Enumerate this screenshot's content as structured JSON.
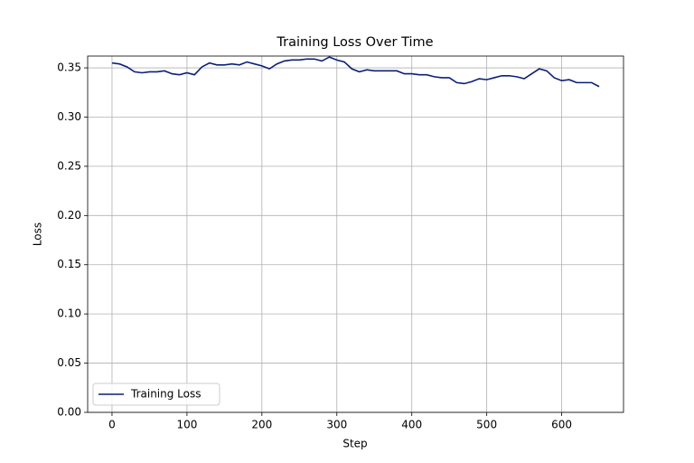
{
  "chart_data": {
    "type": "line",
    "title": "Training Loss Over Time",
    "xlabel": "Step",
    "ylabel": "Loss",
    "x": [
      0,
      10,
      20,
      30,
      40,
      50,
      60,
      70,
      80,
      90,
      100,
      110,
      120,
      130,
      140,
      150,
      160,
      170,
      180,
      190,
      200,
      210,
      220,
      230,
      240,
      250,
      260,
      270,
      280,
      290,
      300,
      310,
      320,
      330,
      340,
      350,
      360,
      370,
      380,
      390,
      400,
      410,
      420,
      430,
      440,
      450,
      460,
      470,
      480,
      490,
      500,
      510,
      520,
      530,
      540,
      550,
      560,
      570,
      580,
      590,
      600,
      610,
      620,
      630,
      640,
      650
    ],
    "series": [
      {
        "name": "Training Loss",
        "color": "#0b1f7a",
        "values": [
          0.355,
          0.354,
          0.351,
          0.346,
          0.345,
          0.346,
          0.346,
          0.347,
          0.344,
          0.343,
          0.345,
          0.343,
          0.351,
          0.355,
          0.353,
          0.353,
          0.354,
          0.353,
          0.356,
          0.354,
          0.352,
          0.349,
          0.354,
          0.357,
          0.358,
          0.358,
          0.359,
          0.359,
          0.357,
          0.361,
          0.358,
          0.356,
          0.349,
          0.346,
          0.348,
          0.347,
          0.347,
          0.347,
          0.347,
          0.344,
          0.344,
          0.343,
          0.343,
          0.341,
          0.34,
          0.34,
          0.335,
          0.334,
          0.336,
          0.339,
          0.338,
          0.34,
          0.342,
          0.342,
          0.341,
          0.339,
          0.344,
          0.349,
          0.347,
          0.34,
          0.337,
          0.338,
          0.335,
          0.335,
          0.335,
          0.331
        ]
      }
    ],
    "xlim": [
      -32.5,
      682.5
    ],
    "ylim": [
      0,
      0.362
    ],
    "xticks": [
      0,
      100,
      200,
      300,
      400,
      500,
      600
    ],
    "yticks": [
      {
        "value": 0,
        "label": "0.00"
      },
      {
        "value": 0.05,
        "label": "0.05"
      },
      {
        "value": 0.1,
        "label": "0.10"
      },
      {
        "value": 0.15,
        "label": "0.15"
      },
      {
        "value": 0.2,
        "label": "0.20"
      },
      {
        "value": 0.25,
        "label": "0.25"
      },
      {
        "value": 0.3,
        "label": "0.30"
      },
      {
        "value": 0.35,
        "label": "0.35"
      }
    ],
    "grid": true,
    "legend": "lower left"
  }
}
